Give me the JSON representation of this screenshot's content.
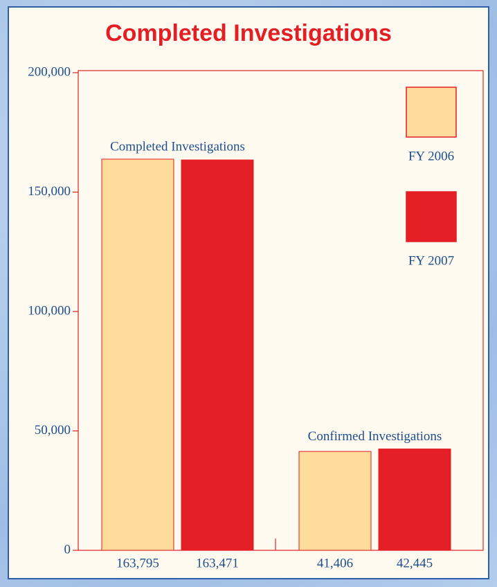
{
  "chart_data": {
    "type": "bar",
    "title": "Completed Investigations",
    "categories": [
      "Completed Investigations",
      "Confirmed Investigations"
    ],
    "series": [
      {
        "name": "FY 2006",
        "color": "#fddb9a",
        "values": [
          163795,
          41406
        ],
        "value_labels": [
          "163,795",
          "41,406"
        ]
      },
      {
        "name": "FY 2007",
        "color": "#e31e24",
        "values": [
          163471,
          42445
        ],
        "value_labels": [
          "163,471",
          "42,445"
        ]
      }
    ],
    "ylim": [
      0,
      200000
    ],
    "yticks": [
      0,
      {
        "value": 50000,
        "label": "50,000"
      },
      {
        "value": 100000,
        "label": "100,000"
      },
      {
        "value": 150000,
        "label": "150,000"
      },
      {
        "value": 200000,
        "label": "200,000"
      }
    ],
    "legend": "upper right"
  }
}
